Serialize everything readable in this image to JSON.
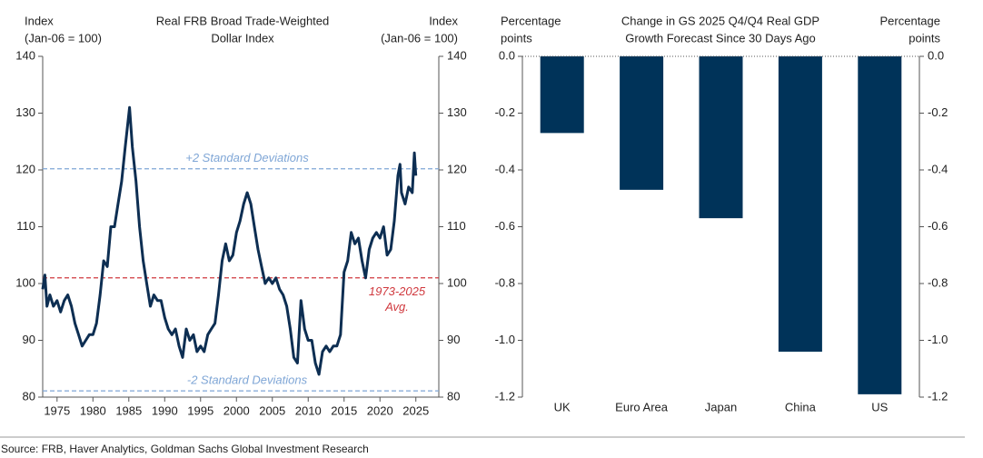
{
  "chart_data": [
    {
      "type": "line",
      "title": [
        "Real FRB Broad Trade-Weighted",
        "Dollar Index"
      ],
      "y_label": [
        "Index",
        "(Jan-06 = 100)"
      ],
      "y2_label": [
        "Index",
        "(Jan-06 = 100)"
      ],
      "xlim": [
        1973,
        2028.2
      ],
      "xticks": [
        1975,
        1980,
        1985,
        1990,
        1995,
        2000,
        2005,
        2010,
        2015,
        2020,
        2025
      ],
      "ylim": [
        80,
        140
      ],
      "yticks": [
        80,
        90,
        100,
        110,
        120,
        130,
        140
      ],
      "y2lim": [
        80,
        140
      ],
      "y2ticks": [
        80,
        90,
        100,
        110,
        120,
        130,
        140
      ],
      "color": "#0d2e52",
      "x": [
        1973.0,
        1973.3,
        1973.6,
        1974,
        1974.5,
        1975,
        1975.5,
        1976,
        1976.5,
        1977,
        1977.5,
        1978,
        1978.5,
        1979,
        1979.5,
        1980,
        1980.5,
        1981,
        1981.5,
        1982,
        1982.5,
        1983,
        1983.5,
        1984,
        1984.5,
        1985.1,
        1985.5,
        1986,
        1986.5,
        1987,
        1987.5,
        1988,
        1988.5,
        1989,
        1989.5,
        1990,
        1990.5,
        1991,
        1991.5,
        1992,
        1992.5,
        1993,
        1993.5,
        1994,
        1994.5,
        1995,
        1995.5,
        1996,
        1996.5,
        1997,
        1997.5,
        1998,
        1998.5,
        1999,
        1999.5,
        2000,
        2000.5,
        2001,
        2001.5,
        2002,
        2002.5,
        2003,
        2003.5,
        2004,
        2004.5,
        2005,
        2005.5,
        2006,
        2006.5,
        2007,
        2007.5,
        2008,
        2008.5,
        2009,
        2009.5,
        2010,
        2010.5,
        2011,
        2011.5,
        2012,
        2012.5,
        2013,
        2013.5,
        2014,
        2014.5,
        2015,
        2015.5,
        2016,
        2016.5,
        2017,
        2017.5,
        2018,
        2018.5,
        2019,
        2019.5,
        2020,
        2020.5,
        2021,
        2021.5,
        2022,
        2022.5,
        2022.8,
        2023,
        2023.5,
        2024,
        2024.5,
        2024.8,
        2025.0
      ],
      "values": [
        99,
        101.5,
        96,
        98,
        96,
        97,
        95,
        97,
        98,
        96,
        93,
        91,
        89,
        90,
        91,
        91,
        93,
        98,
        104,
        103,
        110,
        110,
        114,
        118,
        124,
        131,
        124,
        118,
        110,
        104,
        100,
        96,
        98,
        97,
        97,
        94,
        92,
        91,
        92,
        89,
        87,
        92,
        90,
        91,
        88,
        89,
        88,
        91,
        92,
        93,
        98,
        104,
        107,
        104,
        105,
        109,
        111,
        114,
        116,
        114,
        110,
        106,
        103,
        100,
        101,
        100,
        101,
        99,
        98,
        96,
        92,
        87,
        86,
        97,
        92,
        90,
        90,
        86,
        84,
        88,
        89,
        88,
        89,
        89,
        91,
        102,
        104,
        109,
        107,
        108,
        104,
        101,
        106,
        108,
        109,
        108,
        110,
        105,
        106,
        111,
        119,
        121,
        116,
        114,
        117,
        116,
        123,
        119
      ],
      "annotations": [
        {
          "text": [
            "+2 Standard Deviations"
          ],
          "value": 120.2,
          "color": "#7fa6d6"
        },
        {
          "text": [
            "1973-2025",
            "Avg."
          ],
          "value": 101,
          "color": "#d0393e"
        },
        {
          "text": [
            "-2 Standard Deviations"
          ],
          "value": 81.1,
          "color": "#7fa6d6"
        }
      ]
    },
    {
      "type": "bar",
      "title": [
        "Change in GS 2025 Q4/Q4 Real GDP",
        "Growth Forecast Since 30 Days Ago"
      ],
      "y_label": [
        "Percentage",
        "points"
      ],
      "y2_label": [
        "Percentage",
        "points"
      ],
      "categories": [
        "UK",
        "Euro Area",
        "Japan",
        "China",
        "US"
      ],
      "values": [
        -0.27,
        -0.47,
        -0.57,
        -1.04,
        -1.19
      ],
      "color": "#003359",
      "ylim": [
        -1.2,
        0
      ],
      "yticks": [
        {
          "value": -1.2,
          "label": "-1.2"
        },
        {
          "value": -1.0,
          "label": "-1.0"
        },
        -0.8,
        -0.6,
        -0.4,
        -0.2,
        {
          "value": 0,
          "label": "0.0"
        }
      ],
      "y2lim": [
        -1.2,
        0
      ],
      "y2ticks": [
        {
          "value": -1.2,
          "label": "-1.2"
        },
        {
          "value": -1.0,
          "label": "-1.0"
        },
        -0.8,
        -0.6,
        -0.4,
        -0.2,
        {
          "value": 0,
          "label": "0.0"
        }
      ]
    }
  ],
  "source": "Source: FRB, Haver Analytics, Goldman Sachs Global Investment Research"
}
